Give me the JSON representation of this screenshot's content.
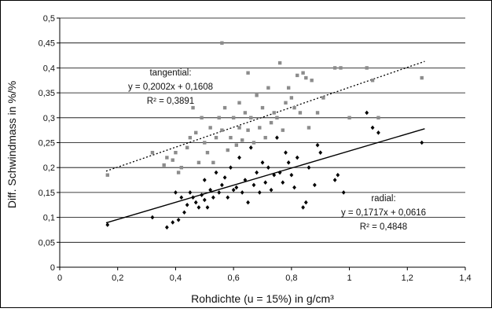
{
  "chart_data": {
    "type": "scatter",
    "title": "",
    "xlabel": "Rohdichte (u = 15%) in g/cm³",
    "ylabel": "Diff. Schwindmass in %/%",
    "xlim": [
      0,
      1.4
    ],
    "ylim": [
      0,
      0.5
    ],
    "x_ticks": [
      "0",
      "0,2",
      "0,4",
      "0,6",
      "0,8",
      "1",
      "1,2",
      "1,4"
    ],
    "y_ticks": [
      "0",
      "0,05",
      "0,1",
      "0,15",
      "0,2",
      "0,25",
      "0,3",
      "0,35",
      "0,4",
      "0,45",
      "0,5"
    ],
    "grid": "horizontal",
    "annotations": {
      "tangential": {
        "name": "tangential:",
        "equation": "y = 0,2002x + 0,1608",
        "r2": "R² = 0,3891"
      },
      "radial": {
        "name": "radial:",
        "equation": "y = 0,1717x + 0,0616",
        "r2": "R² = 0,4848"
      }
    },
    "series": [
      {
        "name": "tangential",
        "marker": "square",
        "color": "#8c8c8c",
        "trendline": {
          "slope": 0.2002,
          "intercept": 0.1608,
          "x_range": [
            0.16,
            1.26
          ],
          "style": "dotted"
        },
        "points": [
          [
            0.165,
            0.185
          ],
          [
            0.32,
            0.23
          ],
          [
            0.36,
            0.205
          ],
          [
            0.37,
            0.22
          ],
          [
            0.39,
            0.215
          ],
          [
            0.4,
            0.23
          ],
          [
            0.41,
            0.19
          ],
          [
            0.42,
            0.2
          ],
          [
            0.44,
            0.24
          ],
          [
            0.45,
            0.26
          ],
          [
            0.46,
            0.32
          ],
          [
            0.47,
            0.27
          ],
          [
            0.48,
            0.21
          ],
          [
            0.49,
            0.3
          ],
          [
            0.5,
            0.25
          ],
          [
            0.51,
            0.23
          ],
          [
            0.52,
            0.28
          ],
          [
            0.53,
            0.21
          ],
          [
            0.54,
            0.26
          ],
          [
            0.55,
            0.3
          ],
          [
            0.56,
            0.45
          ],
          [
            0.56,
            0.275
          ],
          [
            0.57,
            0.32
          ],
          [
            0.58,
            0.235
          ],
          [
            0.59,
            0.26
          ],
          [
            0.6,
            0.3
          ],
          [
            0.61,
            0.245
          ],
          [
            0.62,
            0.28
          ],
          [
            0.62,
            0.33
          ],
          [
            0.63,
            0.255
          ],
          [
            0.64,
            0.31
          ],
          [
            0.65,
            0.275
          ],
          [
            0.65,
            0.39
          ],
          [
            0.66,
            0.3
          ],
          [
            0.67,
            0.25
          ],
          [
            0.68,
            0.345
          ],
          [
            0.69,
            0.28
          ],
          [
            0.7,
            0.32
          ],
          [
            0.71,
            0.26
          ],
          [
            0.72,
            0.36
          ],
          [
            0.73,
            0.29
          ],
          [
            0.74,
            0.31
          ],
          [
            0.75,
            0.3
          ],
          [
            0.76,
            0.41
          ],
          [
            0.77,
            0.275
          ],
          [
            0.78,
            0.33
          ],
          [
            0.79,
            0.36
          ],
          [
            0.8,
            0.34
          ],
          [
            0.81,
            0.32
          ],
          [
            0.82,
            0.385
          ],
          [
            0.83,
            0.31
          ],
          [
            0.84,
            0.39
          ],
          [
            0.85,
            0.38
          ],
          [
            0.86,
            0.28
          ],
          [
            0.87,
            0.375
          ],
          [
            0.89,
            0.31
          ],
          [
            0.91,
            0.34
          ],
          [
            0.95,
            0.4
          ],
          [
            0.97,
            0.4
          ],
          [
            1.0,
            0.3
          ],
          [
            1.06,
            0.4
          ],
          [
            1.08,
            0.375
          ],
          [
            1.1,
            0.3
          ],
          [
            1.25,
            0.38
          ]
        ]
      },
      {
        "name": "radial",
        "marker": "diamond",
        "color": "#000000",
        "trendline": {
          "slope": 0.1717,
          "intercept": 0.0616,
          "x_range": [
            0.16,
            1.26
          ],
          "style": "solid"
        },
        "points": [
          [
            0.165,
            0.085
          ],
          [
            0.32,
            0.1
          ],
          [
            0.37,
            0.08
          ],
          [
            0.39,
            0.09
          ],
          [
            0.4,
            0.15
          ],
          [
            0.41,
            0.095
          ],
          [
            0.42,
            0.14
          ],
          [
            0.43,
            0.11
          ],
          [
            0.44,
            0.125
          ],
          [
            0.45,
            0.15
          ],
          [
            0.46,
            0.14
          ],
          [
            0.47,
            0.13
          ],
          [
            0.48,
            0.12
          ],
          [
            0.49,
            0.145
          ],
          [
            0.5,
            0.135
          ],
          [
            0.5,
            0.175
          ],
          [
            0.51,
            0.12
          ],
          [
            0.52,
            0.155
          ],
          [
            0.53,
            0.14
          ],
          [
            0.54,
            0.19
          ],
          [
            0.55,
            0.15
          ],
          [
            0.56,
            0.165
          ],
          [
            0.57,
            0.18
          ],
          [
            0.58,
            0.14
          ],
          [
            0.59,
            0.2
          ],
          [
            0.6,
            0.155
          ],
          [
            0.61,
            0.16
          ],
          [
            0.62,
            0.22
          ],
          [
            0.63,
            0.15
          ],
          [
            0.64,
            0.175
          ],
          [
            0.65,
            0.13
          ],
          [
            0.66,
            0.24
          ],
          [
            0.67,
            0.165
          ],
          [
            0.68,
            0.19
          ],
          [
            0.69,
            0.15
          ],
          [
            0.7,
            0.21
          ],
          [
            0.71,
            0.17
          ],
          [
            0.72,
            0.2
          ],
          [
            0.73,
            0.155
          ],
          [
            0.74,
            0.185
          ],
          [
            0.75,
            0.26
          ],
          [
            0.76,
            0.19
          ],
          [
            0.77,
            0.17
          ],
          [
            0.78,
            0.23
          ],
          [
            0.79,
            0.21
          ],
          [
            0.8,
            0.185
          ],
          [
            0.81,
            0.16
          ],
          [
            0.82,
            0.22
          ],
          [
            0.84,
            0.12
          ],
          [
            0.85,
            0.13
          ],
          [
            0.86,
            0.2
          ],
          [
            0.88,
            0.165
          ],
          [
            0.89,
            0.245
          ],
          [
            0.9,
            0.23
          ],
          [
            0.95,
            0.175
          ],
          [
            0.96,
            0.185
          ],
          [
            0.98,
            0.15
          ],
          [
            1.06,
            0.31
          ],
          [
            1.08,
            0.28
          ],
          [
            1.1,
            0.27
          ],
          [
            1.25,
            0.25
          ]
        ]
      }
    ]
  }
}
